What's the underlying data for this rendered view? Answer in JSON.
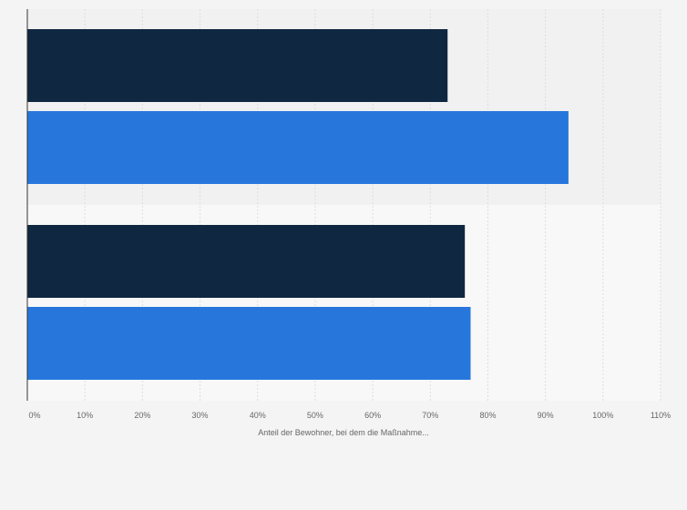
{
  "chart_data": {
    "type": "bar",
    "orientation": "horizontal",
    "categories": [
      "",
      ""
    ],
    "series": [
      {
        "color": "#0f2740",
        "values": [
          73,
          76
        ]
      },
      {
        "color": "#2776dc",
        "values": [
          94,
          77
        ]
      }
    ],
    "xlabel": "Anteil der Bewohner, bei dem die Maßnahme...",
    "ylabel": "",
    "xlim": [
      0,
      110
    ],
    "x_ticks": [
      "0%",
      "10%",
      "20%",
      "30%",
      "40%",
      "50%",
      "60%",
      "70%",
      "80%",
      "90%",
      "100%",
      "110%"
    ],
    "grid": true,
    "legend": "none",
    "band_colors": [
      "#f1f1f1",
      "#f8f8f8"
    ]
  }
}
